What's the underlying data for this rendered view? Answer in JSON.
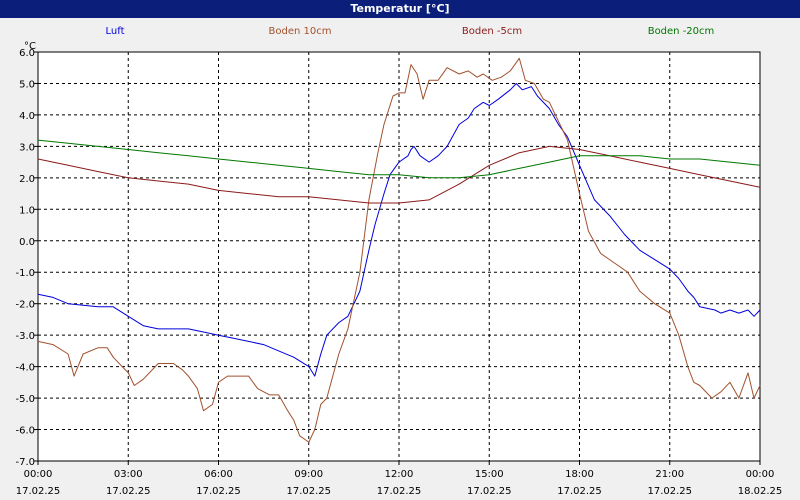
{
  "window": {
    "title": "Temperatur [°C]"
  },
  "chart_data": {
    "type": "line",
    "title": "Temperatur [°C]",
    "ylabel": "°C",
    "ylim": [
      -7.0,
      6.0
    ],
    "y_ticks": [
      "6.0",
      "5.0",
      "4.0",
      "3.0",
      "2.0",
      "1.0",
      "0.0",
      "-1.0",
      "-2.0",
      "-3.0",
      "-4.0",
      "-5.0",
      "-6.0",
      "-7.0"
    ],
    "x_hours": [
      0,
      24
    ],
    "x_ticks": [
      {
        "time": "00:00",
        "date": "17.02.25"
      },
      {
        "time": "03:00",
        "date": "17.02.25"
      },
      {
        "time": "06:00",
        "date": "17.02.25"
      },
      {
        "time": "09:00",
        "date": "17.02.25"
      },
      {
        "time": "12:00",
        "date": "17.02.25"
      },
      {
        "time": "15:00",
        "date": "17.02.25"
      },
      {
        "time": "18:00",
        "date": "17.02.25"
      },
      {
        "time": "21:00",
        "date": "17.02.25"
      },
      {
        "time": "00:00",
        "date": "18.02.25"
      }
    ],
    "grid": true,
    "legend_position": "top",
    "series": [
      {
        "name": "Luft",
        "color": "#0000dd",
        "points": [
          [
            0,
            -1.7
          ],
          [
            0.5,
            -1.8
          ],
          [
            1,
            -2.0
          ],
          [
            2,
            -2.1
          ],
          [
            2.5,
            -2.1
          ],
          [
            3,
            -2.4
          ],
          [
            3.5,
            -2.7
          ],
          [
            4,
            -2.8
          ],
          [
            4.5,
            -2.8
          ],
          [
            5,
            -2.8
          ],
          [
            5.5,
            -2.9
          ],
          [
            6,
            -3.0
          ],
          [
            6.5,
            -3.1
          ],
          [
            7,
            -3.2
          ],
          [
            7.5,
            -3.3
          ],
          [
            8,
            -3.5
          ],
          [
            8.5,
            -3.7
          ],
          [
            9,
            -4.0
          ],
          [
            9.2,
            -4.3
          ],
          [
            9.4,
            -3.6
          ],
          [
            9.6,
            -3.0
          ],
          [
            10,
            -2.6
          ],
          [
            10.3,
            -2.4
          ],
          [
            10.7,
            -1.6
          ],
          [
            11,
            -0.3
          ],
          [
            11.2,
            0.5
          ],
          [
            11.5,
            1.5
          ],
          [
            11.7,
            2.1
          ],
          [
            12,
            2.5
          ],
          [
            12.3,
            2.7
          ],
          [
            12.4,
            2.9
          ],
          [
            12.5,
            3.0
          ],
          [
            12.7,
            2.7
          ],
          [
            13,
            2.5
          ],
          [
            13.3,
            2.7
          ],
          [
            13.6,
            3.0
          ],
          [
            14,
            3.7
          ],
          [
            14.3,
            3.9
          ],
          [
            14.5,
            4.2
          ],
          [
            14.8,
            4.4
          ],
          [
            15,
            4.3
          ],
          [
            15.3,
            4.5
          ],
          [
            15.7,
            4.8
          ],
          [
            15.9,
            5.0
          ],
          [
            16.1,
            4.8
          ],
          [
            16.4,
            4.9
          ],
          [
            16.6,
            4.6
          ],
          [
            17,
            4.2
          ],
          [
            17.3,
            3.7
          ],
          [
            17.6,
            3.3
          ],
          [
            18,
            2.4
          ],
          [
            18.5,
            1.3
          ],
          [
            19,
            0.8
          ],
          [
            19.5,
            0.2
          ],
          [
            20,
            -0.3
          ],
          [
            20.5,
            -0.6
          ],
          [
            21,
            -0.9
          ],
          [
            21.3,
            -1.2
          ],
          [
            21.6,
            -1.6
          ],
          [
            21.8,
            -1.8
          ],
          [
            22,
            -2.1
          ],
          [
            22.5,
            -2.2
          ],
          [
            22.7,
            -2.3
          ],
          [
            23,
            -2.2
          ],
          [
            23.3,
            -2.3
          ],
          [
            23.6,
            -2.2
          ],
          [
            23.8,
            -2.4
          ],
          [
            24,
            -2.2
          ]
        ]
      },
      {
        "name": "Boden 10cm",
        "color": "#a0522d",
        "points": [
          [
            0,
            -3.2
          ],
          [
            0.5,
            -3.3
          ],
          [
            1,
            -3.6
          ],
          [
            1.2,
            -4.3
          ],
          [
            1.5,
            -3.6
          ],
          [
            2,
            -3.4
          ],
          [
            2.3,
            -3.4
          ],
          [
            2.5,
            -3.7
          ],
          [
            2.8,
            -4.0
          ],
          [
            3,
            -4.2
          ],
          [
            3.2,
            -4.6
          ],
          [
            3.5,
            -4.4
          ],
          [
            3.7,
            -4.2
          ],
          [
            4,
            -3.9
          ],
          [
            4.5,
            -3.9
          ],
          [
            4.8,
            -4.1
          ],
          [
            5,
            -4.3
          ],
          [
            5.3,
            -4.7
          ],
          [
            5.5,
            -5.4
          ],
          [
            5.8,
            -5.2
          ],
          [
            6,
            -4.5
          ],
          [
            6.3,
            -4.3
          ],
          [
            7,
            -4.3
          ],
          [
            7.3,
            -4.7
          ],
          [
            7.7,
            -4.9
          ],
          [
            8,
            -4.9
          ],
          [
            8.3,
            -5.4
          ],
          [
            8.5,
            -5.7
          ],
          [
            8.7,
            -6.2
          ],
          [
            9,
            -6.4
          ],
          [
            9.2,
            -6.0
          ],
          [
            9.4,
            -5.2
          ],
          [
            9.6,
            -5.0
          ],
          [
            10,
            -3.6
          ],
          [
            10.3,
            -2.8
          ],
          [
            10.7,
            -1.0
          ],
          [
            11,
            1.3
          ],
          [
            11.3,
            2.8
          ],
          [
            11.5,
            3.7
          ],
          [
            11.8,
            4.6
          ],
          [
            12,
            4.7
          ],
          [
            12.2,
            4.7
          ],
          [
            12.4,
            5.6
          ],
          [
            12.6,
            5.3
          ],
          [
            12.8,
            4.5
          ],
          [
            13,
            5.1
          ],
          [
            13.3,
            5.1
          ],
          [
            13.6,
            5.5
          ],
          [
            14,
            5.3
          ],
          [
            14.3,
            5.4
          ],
          [
            14.6,
            5.2
          ],
          [
            14.8,
            5.3
          ],
          [
            15.1,
            5.1
          ],
          [
            15.4,
            5.2
          ],
          [
            15.7,
            5.4
          ],
          [
            16,
            5.8
          ],
          [
            16.2,
            5.1
          ],
          [
            16.5,
            5.0
          ],
          [
            16.8,
            4.5
          ],
          [
            17,
            4.4
          ],
          [
            17.3,
            3.8
          ],
          [
            17.6,
            3.2
          ],
          [
            18,
            1.5
          ],
          [
            18.3,
            0.3
          ],
          [
            18.7,
            -0.4
          ],
          [
            19,
            -0.6
          ],
          [
            19.3,
            -0.8
          ],
          [
            19.6,
            -1.0
          ],
          [
            20,
            -1.6
          ],
          [
            20.5,
            -2.0
          ],
          [
            21,
            -2.3
          ],
          [
            21.3,
            -3.0
          ],
          [
            21.6,
            -4.0
          ],
          [
            21.8,
            -4.5
          ],
          [
            22,
            -4.6
          ],
          [
            22.4,
            -5.0
          ],
          [
            22.7,
            -4.8
          ],
          [
            23,
            -4.5
          ],
          [
            23.3,
            -5.0
          ],
          [
            23.6,
            -4.2
          ],
          [
            23.8,
            -5.0
          ],
          [
            24,
            -4.6
          ]
        ]
      },
      {
        "name": "Boden -5cm",
        "color": "#8b1a1a",
        "points": [
          [
            0,
            2.6
          ],
          [
            1,
            2.4
          ],
          [
            2,
            2.2
          ],
          [
            3,
            2.0
          ],
          [
            4,
            1.9
          ],
          [
            5,
            1.8
          ],
          [
            6,
            1.6
          ],
          [
            7,
            1.5
          ],
          [
            8,
            1.4
          ],
          [
            9,
            1.4
          ],
          [
            10,
            1.3
          ],
          [
            11,
            1.2
          ],
          [
            12,
            1.2
          ],
          [
            13,
            1.3
          ],
          [
            14,
            1.8
          ],
          [
            15,
            2.4
          ],
          [
            16,
            2.8
          ],
          [
            17,
            3.0
          ],
          [
            18,
            2.9
          ],
          [
            19,
            2.7
          ],
          [
            20,
            2.5
          ],
          [
            21,
            2.3
          ],
          [
            22,
            2.1
          ],
          [
            23,
            1.9
          ],
          [
            24,
            1.7
          ]
        ]
      },
      {
        "name": "Boden -20cm",
        "color": "#007800",
        "points": [
          [
            0,
            3.2
          ],
          [
            1,
            3.1
          ],
          [
            2,
            3.0
          ],
          [
            3,
            2.9
          ],
          [
            4,
            2.8
          ],
          [
            5,
            2.7
          ],
          [
            6,
            2.6
          ],
          [
            7,
            2.5
          ],
          [
            8,
            2.4
          ],
          [
            9,
            2.3
          ],
          [
            10,
            2.2
          ],
          [
            11,
            2.1
          ],
          [
            12,
            2.1
          ],
          [
            13,
            2.0
          ],
          [
            14,
            2.0
          ],
          [
            15,
            2.1
          ],
          [
            16,
            2.3
          ],
          [
            17,
            2.5
          ],
          [
            18,
            2.7
          ],
          [
            19,
            2.7
          ],
          [
            20,
            2.7
          ],
          [
            21,
            2.6
          ],
          [
            22,
            2.6
          ],
          [
            23,
            2.5
          ],
          [
            24,
            2.4
          ]
        ]
      }
    ]
  }
}
